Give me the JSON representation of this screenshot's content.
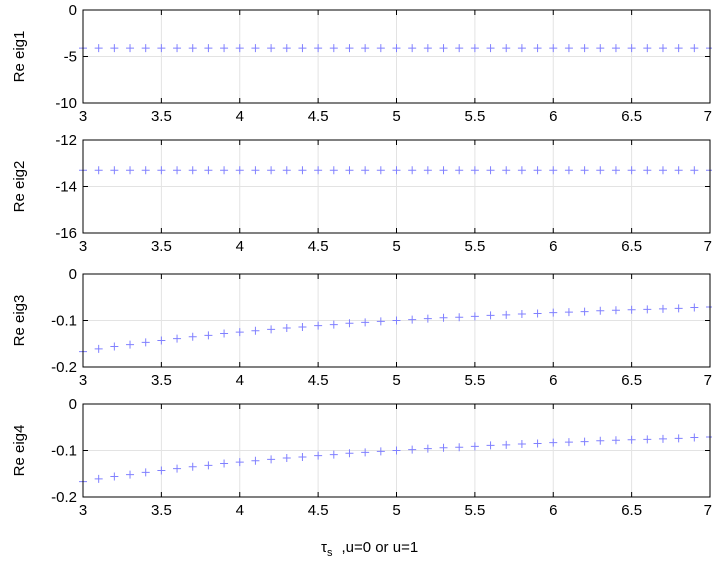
{
  "chart_data": [
    {
      "type": "scatter",
      "ylabel": "Re eig1",
      "xlim": [
        3,
        7
      ],
      "ylim": [
        -10,
        0
      ],
      "x_ticks": [
        "3",
        "3.5",
        "4",
        "4.5",
        "5",
        "5.5",
        "6",
        "6.5",
        "7"
      ],
      "y_ticks": [
        "0",
        "-5",
        "-10"
      ],
      "grid": true,
      "marker": "+",
      "marker_color": "#8080ff",
      "series": [
        {
          "x": [
            3.0,
            3.1,
            3.2,
            3.3,
            3.4,
            3.5,
            3.6,
            3.7,
            3.8,
            3.9,
            4.0,
            4.1,
            4.2,
            4.3,
            4.4,
            4.5,
            4.6,
            4.7,
            4.8,
            4.9,
            5.0,
            5.1,
            5.2,
            5.3,
            5.4,
            5.5,
            5.6,
            5.7,
            5.8,
            5.9,
            6.0,
            6.1,
            6.2,
            6.3,
            6.4,
            6.5,
            6.6,
            6.7,
            6.8,
            6.9,
            7.0
          ],
          "y": [
            -4.1,
            -4.1,
            -4.1,
            -4.1,
            -4.1,
            -4.1,
            -4.1,
            -4.1,
            -4.1,
            -4.1,
            -4.1,
            -4.1,
            -4.1,
            -4.1,
            -4.1,
            -4.1,
            -4.1,
            -4.1,
            -4.1,
            -4.1,
            -4.1,
            -4.1,
            -4.1,
            -4.1,
            -4.1,
            -4.1,
            -4.1,
            -4.1,
            -4.1,
            -4.1,
            -4.1,
            -4.1,
            -4.1,
            -4.1,
            -4.1,
            -4.1,
            -4.1,
            -4.1,
            -4.1,
            -4.1,
            -4.1
          ]
        }
      ]
    },
    {
      "type": "scatter",
      "ylabel": "Re eig2",
      "xlim": [
        3,
        7
      ],
      "ylim": [
        -16,
        -12
      ],
      "x_ticks": [
        "3",
        "3.5",
        "4",
        "4.5",
        "5",
        "5.5",
        "6",
        "6.5",
        "7"
      ],
      "y_ticks": [
        "-12",
        "-14",
        "-16"
      ],
      "grid": true,
      "marker": "+",
      "marker_color": "#8080ff",
      "series": [
        {
          "x": [
            3.0,
            3.1,
            3.2,
            3.3,
            3.4,
            3.5,
            3.6,
            3.7,
            3.8,
            3.9,
            4.0,
            4.1,
            4.2,
            4.3,
            4.4,
            4.5,
            4.6,
            4.7,
            4.8,
            4.9,
            5.0,
            5.1,
            5.2,
            5.3,
            5.4,
            5.5,
            5.6,
            5.7,
            5.8,
            5.9,
            6.0,
            6.1,
            6.2,
            6.3,
            6.4,
            6.5,
            6.6,
            6.7,
            6.8,
            6.9,
            7.0
          ],
          "y": [
            -13.3,
            -13.3,
            -13.3,
            -13.3,
            -13.3,
            -13.3,
            -13.3,
            -13.3,
            -13.3,
            -13.3,
            -13.3,
            -13.3,
            -13.3,
            -13.3,
            -13.3,
            -13.3,
            -13.3,
            -13.3,
            -13.3,
            -13.3,
            -13.3,
            -13.3,
            -13.3,
            -13.3,
            -13.3,
            -13.3,
            -13.3,
            -13.3,
            -13.3,
            -13.3,
            -13.3,
            -13.3,
            -13.3,
            -13.3,
            -13.3,
            -13.3,
            -13.3,
            -13.3,
            -13.3,
            -13.3,
            -13.3
          ]
        }
      ]
    },
    {
      "type": "scatter",
      "ylabel": "Re eig3",
      "xlim": [
        3,
        7
      ],
      "ylim": [
        -0.2,
        0
      ],
      "x_ticks": [
        "3",
        "3.5",
        "4",
        "4.5",
        "5",
        "5.5",
        "6",
        "6.5",
        "7"
      ],
      "y_ticks": [
        "0",
        "-0.1",
        "-0.2"
      ],
      "grid": true,
      "marker": "+",
      "marker_color": "#8080ff",
      "series": [
        {
          "x": [
            3.0,
            3.1,
            3.2,
            3.3,
            3.4,
            3.5,
            3.6,
            3.7,
            3.8,
            3.9,
            4.0,
            4.1,
            4.2,
            4.3,
            4.4,
            4.5,
            4.6,
            4.7,
            4.8,
            4.9,
            5.0,
            5.1,
            5.2,
            5.3,
            5.4,
            5.5,
            5.6,
            5.7,
            5.8,
            5.9,
            6.0,
            6.1,
            6.2,
            6.3,
            6.4,
            6.5,
            6.6,
            6.7,
            6.8,
            6.9,
            7.0
          ],
          "y": [
            -0.167,
            -0.161,
            -0.156,
            -0.152,
            -0.147,
            -0.143,
            -0.139,
            -0.135,
            -0.132,
            -0.128,
            -0.125,
            -0.122,
            -0.119,
            -0.116,
            -0.114,
            -0.111,
            -0.109,
            -0.106,
            -0.104,
            -0.102,
            -0.1,
            -0.098,
            -0.096,
            -0.094,
            -0.093,
            -0.091,
            -0.089,
            -0.088,
            -0.086,
            -0.085,
            -0.083,
            -0.082,
            -0.081,
            -0.079,
            -0.078,
            -0.077,
            -0.076,
            -0.075,
            -0.074,
            -0.072,
            -0.071
          ]
        }
      ]
    },
    {
      "type": "scatter",
      "ylabel": "Re eig4",
      "xlabel": "τs ,u=0 or u=1",
      "xlim": [
        3,
        7
      ],
      "ylim": [
        -0.2,
        0
      ],
      "x_ticks": [
        "3",
        "3.5",
        "4",
        "4.5",
        "5",
        "5.5",
        "6",
        "6.5",
        "7"
      ],
      "y_ticks": [
        "0",
        "-0.1",
        "-0.2"
      ],
      "grid": true,
      "marker": "+",
      "marker_color": "#8080ff",
      "series": [
        {
          "x": [
            3.0,
            3.1,
            3.2,
            3.3,
            3.4,
            3.5,
            3.6,
            3.7,
            3.8,
            3.9,
            4.0,
            4.1,
            4.2,
            4.3,
            4.4,
            4.5,
            4.6,
            4.7,
            4.8,
            4.9,
            5.0,
            5.1,
            5.2,
            5.3,
            5.4,
            5.5,
            5.6,
            5.7,
            5.8,
            5.9,
            6.0,
            6.1,
            6.2,
            6.3,
            6.4,
            6.5,
            6.6,
            6.7,
            6.8,
            6.9,
            7.0
          ],
          "y": [
            -0.167,
            -0.161,
            -0.156,
            -0.152,
            -0.147,
            -0.143,
            -0.139,
            -0.135,
            -0.132,
            -0.128,
            -0.125,
            -0.122,
            -0.119,
            -0.116,
            -0.114,
            -0.111,
            -0.109,
            -0.106,
            -0.104,
            -0.102,
            -0.1,
            -0.098,
            -0.096,
            -0.094,
            -0.093,
            -0.091,
            -0.089,
            -0.088,
            -0.086,
            -0.085,
            -0.083,
            -0.082,
            -0.081,
            -0.079,
            -0.078,
            -0.077,
            -0.076,
            -0.075,
            -0.074,
            -0.072,
            -0.071
          ]
        }
      ]
    }
  ],
  "xlabel_parts": {
    "symbol": "τ",
    "subscript": "s",
    "rest": ",u=0 or u=1"
  }
}
